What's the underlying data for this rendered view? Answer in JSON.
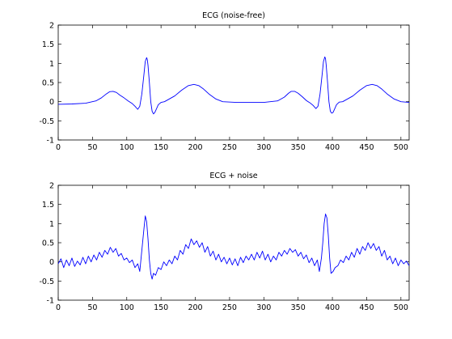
{
  "chart_data": [
    {
      "type": "line",
      "title": "ECG (noise-free)",
      "xlabel": "",
      "ylabel": "",
      "xlim": [
        0,
        512
      ],
      "ylim": [
        -1,
        2
      ],
      "xticks": [
        0,
        50,
        100,
        150,
        200,
        250,
        300,
        350,
        400,
        450,
        500
      ],
      "yticks": [
        -1,
        -0.5,
        0,
        0.5,
        1,
        1.5,
        2
      ],
      "grid": false,
      "line_color": "#0000ff",
      "series": [
        {
          "x": [
            0,
            20,
            40,
            55,
            63,
            70,
            75,
            80,
            85,
            90,
            96,
            102,
            108,
            112,
            116,
            119,
            122,
            125,
            127,
            129,
            130,
            131,
            133,
            135,
            137,
            139,
            141,
            143,
            146,
            150,
            155,
            160,
            170,
            180,
            190,
            198,
            205,
            212,
            220,
            230,
            240,
            260,
            280,
            300,
            320,
            330,
            336,
            340,
            345,
            350,
            356,
            362,
            368,
            372,
            376,
            379,
            382,
            385,
            387,
            389,
            390,
            391,
            393,
            395,
            397,
            399,
            401,
            403,
            406,
            410,
            415,
            420,
            430,
            440,
            450,
            458,
            465,
            472,
            480,
            490,
            500,
            512
          ],
          "y": [
            -0.07,
            -0.06,
            -0.04,
            0.02,
            0.1,
            0.2,
            0.26,
            0.27,
            0.24,
            0.17,
            0.1,
            0.02,
            -0.05,
            -0.12,
            -0.2,
            -0.12,
            0.2,
            0.7,
            1.05,
            1.15,
            1.1,
            0.95,
            0.5,
            0.0,
            -0.25,
            -0.32,
            -0.28,
            -0.2,
            -0.08,
            -0.02,
            0.0,
            0.05,
            0.15,
            0.3,
            0.42,
            0.45,
            0.42,
            0.33,
            0.2,
            0.07,
            0.0,
            -0.02,
            -0.02,
            -0.02,
            0.02,
            0.12,
            0.22,
            0.27,
            0.27,
            0.22,
            0.13,
            0.03,
            -0.04,
            -0.1,
            -0.18,
            -0.12,
            0.2,
            0.7,
            1.05,
            1.17,
            1.12,
            0.95,
            0.5,
            0.0,
            -0.25,
            -0.3,
            -0.28,
            -0.2,
            -0.08,
            -0.01,
            0.0,
            0.05,
            0.15,
            0.3,
            0.42,
            0.45,
            0.42,
            0.33,
            0.2,
            0.07,
            0.0,
            -0.02
          ]
        }
      ]
    },
    {
      "type": "line",
      "title": "ECG + noise",
      "xlabel": "",
      "ylabel": "",
      "xlim": [
        0,
        512
      ],
      "ylim": [
        -1,
        2
      ],
      "xticks": [
        0,
        50,
        100,
        150,
        200,
        250,
        300,
        350,
        400,
        450,
        500
      ],
      "yticks": [
        -1,
        -0.5,
        0,
        0.5,
        1,
        1.5,
        2
      ],
      "grid": false,
      "line_color": "#0000ff",
      "series": [
        {
          "x": [
            0,
            4,
            8,
            12,
            16,
            20,
            24,
            28,
            32,
            36,
            40,
            44,
            48,
            52,
            56,
            60,
            64,
            68,
            72,
            76,
            80,
            84,
            88,
            92,
            96,
            100,
            104,
            108,
            112,
            116,
            119,
            122,
            125,
            127,
            129,
            131,
            133,
            135,
            137,
            139,
            142,
            146,
            150,
            154,
            158,
            162,
            166,
            170,
            174,
            178,
            182,
            186,
            190,
            194,
            198,
            202,
            206,
            210,
            214,
            218,
            222,
            226,
            230,
            234,
            238,
            242,
            246,
            250,
            254,
            258,
            262,
            266,
            270,
            274,
            278,
            282,
            286,
            290,
            294,
            298,
            302,
            306,
            310,
            314,
            318,
            322,
            326,
            330,
            334,
            338,
            342,
            346,
            350,
            354,
            358,
            362,
            366,
            370,
            374,
            378,
            381,
            384,
            386,
            388,
            390,
            392,
            394,
            396,
            398,
            401,
            404,
            408,
            412,
            416,
            420,
            424,
            428,
            432,
            436,
            440,
            444,
            448,
            452,
            456,
            460,
            464,
            468,
            472,
            476,
            480,
            484,
            488,
            492,
            496,
            500,
            504,
            508,
            512
          ],
          "y": [
            -0.05,
            0.08,
            -0.15,
            0.05,
            -0.1,
            0.1,
            -0.12,
            0.02,
            -0.08,
            0.12,
            -0.05,
            0.15,
            0.0,
            0.18,
            0.05,
            0.25,
            0.12,
            0.3,
            0.2,
            0.38,
            0.25,
            0.35,
            0.15,
            0.22,
            0.05,
            0.1,
            -0.02,
            0.05,
            -0.15,
            -0.05,
            -0.25,
            0.3,
            0.85,
            1.2,
            1.05,
            0.6,
            0.05,
            -0.3,
            -0.45,
            -0.3,
            -0.35,
            -0.15,
            -0.2,
            0.0,
            -0.1,
            0.05,
            -0.05,
            0.15,
            0.05,
            0.3,
            0.2,
            0.45,
            0.35,
            0.6,
            0.45,
            0.55,
            0.38,
            0.5,
            0.25,
            0.4,
            0.15,
            0.28,
            0.05,
            0.2,
            0.0,
            0.12,
            -0.05,
            0.1,
            -0.08,
            0.08,
            -0.1,
            0.12,
            -0.02,
            0.15,
            0.05,
            0.2,
            0.05,
            0.25,
            0.1,
            0.28,
            0.05,
            0.2,
            0.0,
            0.15,
            0.05,
            0.25,
            0.15,
            0.3,
            0.2,
            0.35,
            0.25,
            0.32,
            0.15,
            0.25,
            0.08,
            0.18,
            -0.02,
            0.1,
            -0.1,
            0.05,
            -0.25,
            0.1,
            0.5,
            1.0,
            1.25,
            1.15,
            0.7,
            0.1,
            -0.3,
            -0.25,
            -0.15,
            -0.1,
            0.05,
            -0.02,
            0.15,
            0.05,
            0.25,
            0.12,
            0.35,
            0.2,
            0.4,
            0.3,
            0.5,
            0.35,
            0.48,
            0.3,
            0.4,
            0.15,
            0.3,
            0.05,
            0.15,
            -0.05,
            0.1,
            -0.1,
            0.05,
            -0.05,
            0.02,
            -0.1
          ]
        }
      ]
    }
  ]
}
